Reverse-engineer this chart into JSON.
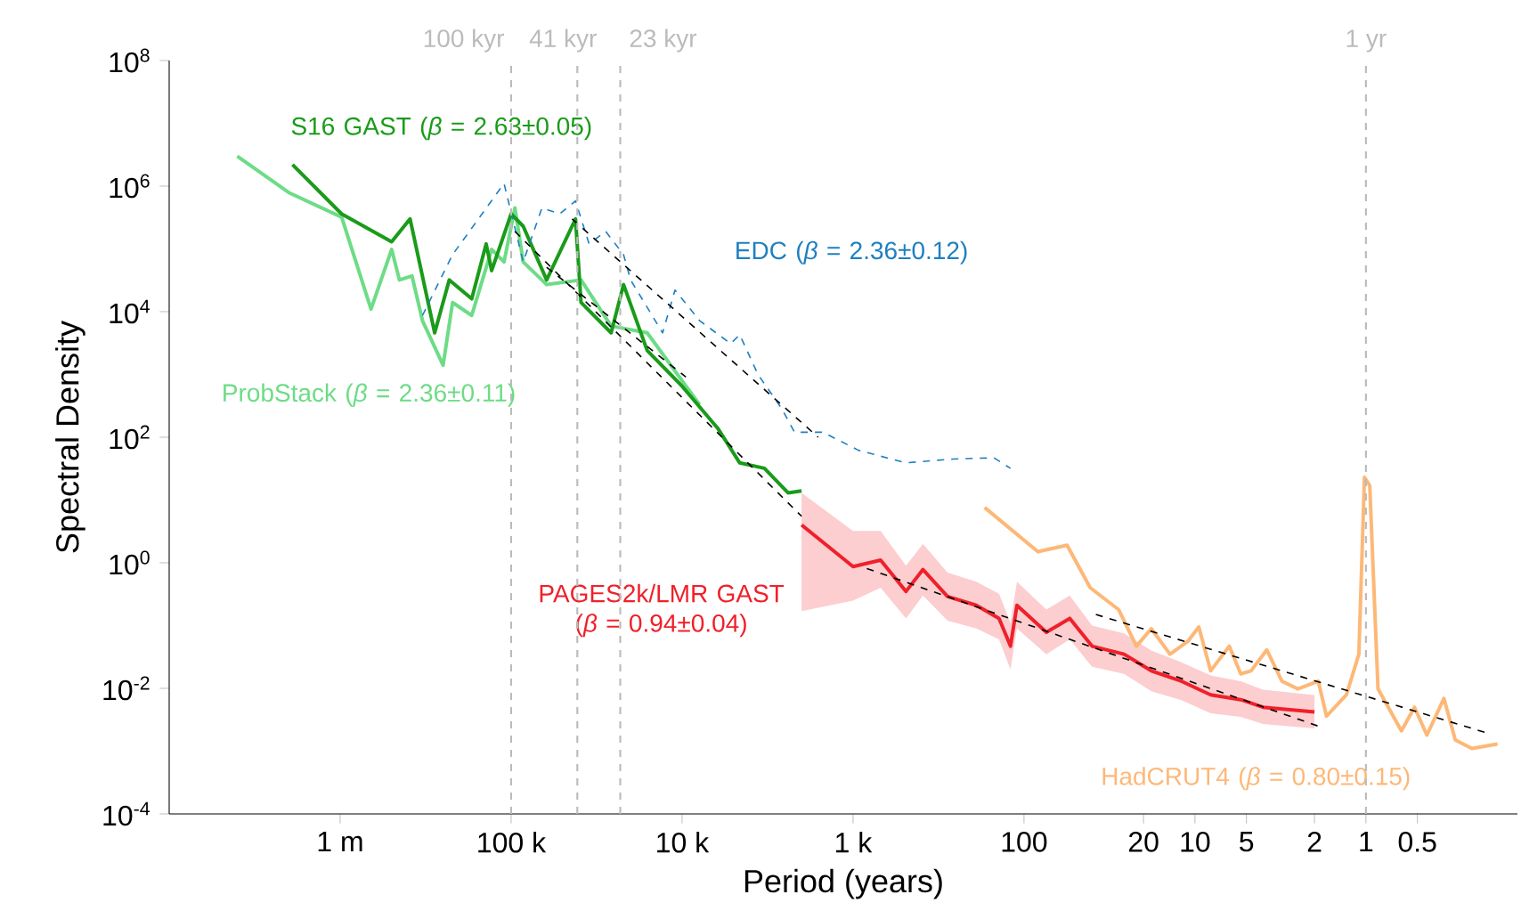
{
  "chart_data": {
    "type": "line",
    "xlabel": "Period (years)",
    "ylabel": "Spectral Density",
    "log": "xy",
    "grid": false,
    "marker": "none",
    "xlim": [
      10000000.0,
      0.13
    ],
    "ylim": [
      0.0001,
      100000000.0
    ],
    "xticks": [
      {
        "value": 1000000.0,
        "label": "1 m"
      },
      {
        "value": 100000.0,
        "label": "100 k"
      },
      {
        "value": 10000.0,
        "label": "10 k"
      },
      {
        "value": 1000.0,
        "label": "1 k"
      },
      100,
      20,
      10,
      5,
      2,
      1,
      0.5
    ],
    "yticks": [
      {
        "value": 0.0001,
        "label": "10$^{-4}$"
      },
      {
        "value": 0.01,
        "label": "10$^{-2}$"
      },
      {
        "value": 1,
        "label": "10$^{0}$"
      },
      {
        "value": 100.0,
        "label": "10$^{2}$"
      },
      {
        "value": 10000.0,
        "label": "10$^{4}$"
      },
      {
        "value": 1000000.0,
        "label": "10$^{6}$"
      },
      {
        "value": 100000000.0,
        "label": "10$^{8}$"
      }
    ],
    "ref_lines": [
      {
        "axis": "x",
        "value": 100000.0,
        "label": "100 kyr",
        "color": "#bbbbbb",
        "line_style": "dashed"
      },
      {
        "axis": "x",
        "value": 41000.0,
        "label": "41 kyr",
        "color": "#bbbbbb",
        "line_style": "dashed"
      },
      {
        "axis": "x",
        "value": 23000.0,
        "label": "23 kyr",
        "color": "#bbbbbb",
        "line_style": "dashed"
      },
      {
        "axis": "x",
        "value": 1,
        "label": "1 yr",
        "color": "#bbbbbb",
        "line_style": "dashed"
      }
    ],
    "series": [
      {
        "name": "ProbStack (*β* = 2.36±0.11)",
        "color": "#6ddc86",
        "line_style": "solid",
        "x": [
          4000000.0,
          2000000.0,
          980000.0,
          660000.0,
          500000.0,
          450000.0,
          380000.0,
          330000.0,
          250000.0,
          220000.0,
          170000.0,
          130000.0,
          110000.0,
          95000.0,
          85000.0,
          62000.0,
          39000.0,
          26000.0,
          16000.0,
          7900.0
        ],
        "values": [
          3000000.0,
          790000.0,
          320000.0,
          11000.0,
          98000.0,
          32000.0,
          37000.0,
          7200.0,
          1400.0,
          14000.0,
          8700.0,
          98000.0,
          62000.0,
          450000.0,
          62000.0,
          27000.0,
          32000.0,
          5900.0,
          4600.0,
          330
        ]
      },
      {
        "name": "S16 GAST (*β* = 2.63±0.05)",
        "color": "#1a9b1a",
        "line_style": "solid",
        "x": [
          1900000.0,
          980000.0,
          500000.0,
          390000.0,
          280000.0,
          230000.0,
          170000.0,
          140000.0,
          130000.0,
          100000.0,
          85000.0,
          62000.0,
          42000.0,
          39000.0,
          26000.0,
          22000.0,
          16000.0,
          10000.0,
          6200.0,
          4600.0,
          3300.0,
          2400.0,
          2000.0
        ],
        "values": [
          2200000.0,
          360000.0,
          130000.0,
          300000.0,
          4600.0,
          32000.0,
          16000.0,
          120000.0,
          45000.0,
          360000.0,
          230000.0,
          32000.0,
          300000.0,
          14000.0,
          4600.0,
          27000.0,
          2400.0,
          650,
          140,
          39,
          32,
          13,
          14
        ]
      },
      {
        "name": "EDC (*β* = 2.36±0.12)",
        "color": "#1f7fc0",
        "line_style": "dashed",
        "x": [
          330000.0,
          220000.0,
          110000.0,
          85000.0,
          66000.0,
          52000.0,
          42000.0,
          35000.0,
          28000.0,
          22000.0,
          20000.0,
          13000.0,
          11000.0,
          7900.0,
          5200.0,
          4600.0,
          3600.0,
          2600.0,
          2200.0,
          1500.0,
          930,
          490,
          260,
          150,
          120
        ],
        "values": [
          8700.0,
          81000.0,
          1100000.0,
          62000.0,
          450000.0,
          360000.0,
          580000.0,
          120000.0,
          190000.0,
          81000.0,
          32000.0,
          4600.0,
          22000.0,
          7200.0,
          3100.0,
          4300.0,
          1000.0,
          280,
          120,
          120,
          62,
          39,
          45,
          47,
          32
        ]
      },
      {
        "name": "PAGES2k/LMR GAST (*β* = 0.94±0.04)",
        "color": "#f0202a",
        "line_style": "solid",
        "x": [
          2000.0,
          1000.0,
          690,
          490,
          390,
          280,
          190,
          140,
          120,
          110,
          74,
          54,
          40,
          26,
          18,
          12,
          8.1,
          5.4,
          4.0,
          2.0
        ],
        "values": [
          4.0,
          0.87,
          1.1,
          0.35,
          0.78,
          0.29,
          0.21,
          0.13,
          0.047,
          0.21,
          0.078,
          0.13,
          0.047,
          0.035,
          0.019,
          0.013,
          0.0079,
          0.0066,
          0.005,
          0.0042
        ],
        "lower": [
          0.17,
          0.25,
          0.4,
          0.13,
          0.3,
          0.12,
          0.09,
          0.06,
          0.02,
          0.09,
          0.035,
          0.06,
          0.022,
          0.017,
          0.009,
          0.0065,
          0.004,
          0.0035,
          0.0027,
          0.0023
        ],
        "upper": [
          13,
          3.2,
          3.2,
          0.9,
          2.0,
          0.7,
          0.5,
          0.32,
          0.11,
          0.5,
          0.18,
          0.3,
          0.1,
          0.075,
          0.04,
          0.026,
          0.016,
          0.013,
          0.0095,
          0.0078
        ]
      },
      {
        "name": "HadCRUT4 (*β* = 0.80±0.15)",
        "color": "#fdb877",
        "line_style": "solid",
        "x": [
          170,
          83,
          56,
          41,
          28,
          22,
          18,
          14,
          11,
          9.5,
          8.1,
          6.3,
          5.4,
          4.7,
          3.8,
          3.1,
          2.5,
          1.9,
          1.7,
          1.3,
          1.1,
          1.02,
          0.95,
          0.85,
          0.62,
          0.52,
          0.44,
          0.35,
          0.3,
          0.24,
          0.17
        ],
        "values": [
          7.6,
          1.5,
          1.9,
          0.4,
          0.18,
          0.047,
          0.089,
          0.035,
          0.056,
          0.095,
          0.019,
          0.047,
          0.017,
          0.019,
          0.041,
          0.013,
          0.0098,
          0.013,
          0.0036,
          0.0079,
          0.035,
          23,
          17,
          0.0098,
          0.0021,
          0.005,
          0.0018,
          0.0069,
          0.0015,
          0.0011,
          0.0013
        ]
      },
      {
        "color": "#000000",
        "line_style": "dashed",
        "x": [
          95000.0,
          2000.0
        ],
        "values": [
          190000.0,
          5.5
        ]
      },
      {
        "color": "#000000",
        "line_style": "dashed",
        "x": [
          62000.0,
          9500.0
        ],
        "values": [
          51000.0,
          910
        ]
      },
      {
        "color": "#000000",
        "line_style": "dashed",
        "x": [
          44000.0,
          1600.0
        ],
        "values": [
          300000.0,
          100
        ]
      },
      {
        "color": "#000000",
        "line_style": "dashed",
        "x": [
          830,
          1.9
        ],
        "values": [
          0.81,
          0.0025
        ]
      },
      {
        "color": "#000000",
        "line_style": "dashed",
        "x": [
          38,
          0.19
        ],
        "values": [
          0.15,
          0.0019
        ]
      }
    ]
  }
}
